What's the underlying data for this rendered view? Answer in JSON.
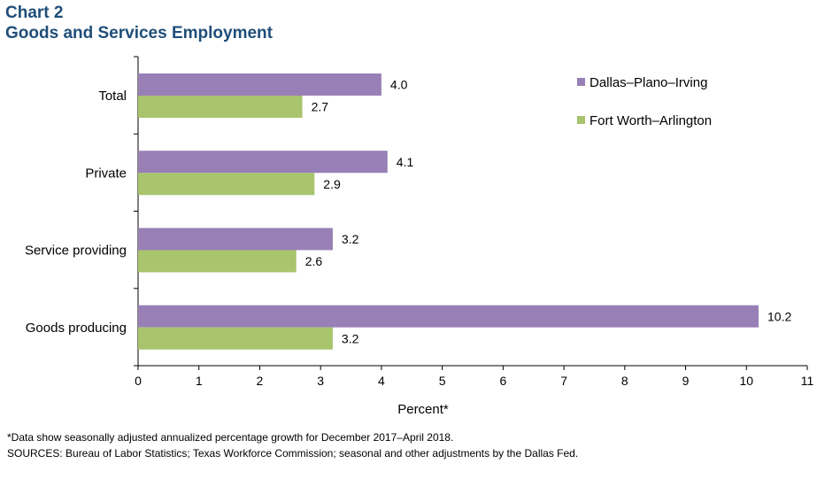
{
  "header": {
    "chart_number": "Chart 2",
    "title": "Goods and Services Employment"
  },
  "chart_data": {
    "type": "bar",
    "orientation": "horizontal",
    "categories": [
      "Total",
      "Private",
      "Service providing",
      "Goods producing"
    ],
    "series": [
      {
        "name": "Dallas–Plano–Irving",
        "values": [
          4.0,
          4.1,
          3.2,
          10.2
        ],
        "labels": [
          "4.0",
          "4.1",
          "3.2",
          "10.2"
        ],
        "color": "#9880b6"
      },
      {
        "name": "Fort Worth–Arlington",
        "values": [
          2.7,
          2.9,
          2.6,
          3.2
        ],
        "labels": [
          "2.7",
          "2.9",
          "2.6",
          "3.2"
        ],
        "color": "#a8c46c"
      }
    ],
    "xlim": [
      0,
      11
    ],
    "xticks": [
      "0",
      "1",
      "2",
      "3",
      "4",
      "5",
      "6",
      "7",
      "8",
      "9",
      "10",
      "11"
    ],
    "xlabel": "Percent*",
    "ylabel": "",
    "grid": false,
    "legend_position": "top-right"
  },
  "footer": {
    "note": "*Data show seasonally adjusted annualized percentage growth for December 2017–April 2018.",
    "sources": "SOURCES: Bureau of Labor Statistics; Texas Workforce Commission; seasonal and other adjustments by the Dallas Fed."
  }
}
